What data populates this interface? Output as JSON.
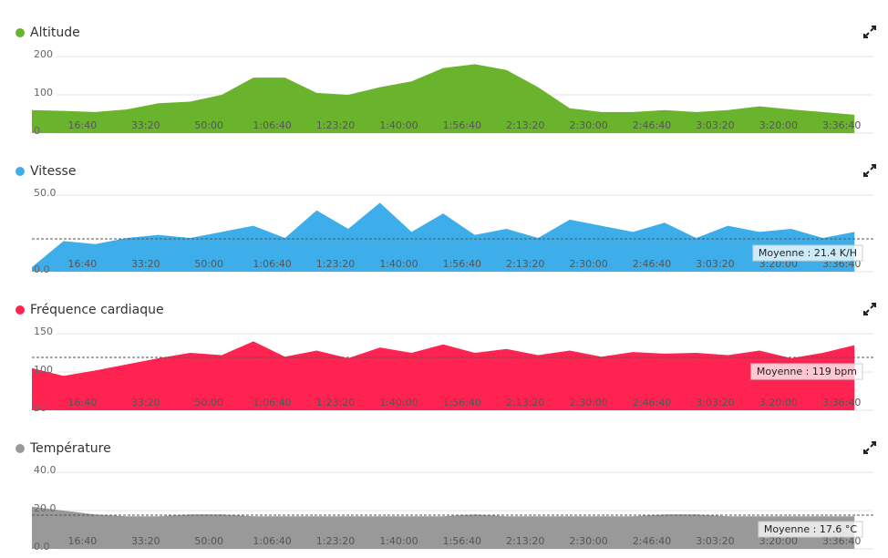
{
  "chart_data": [
    {
      "type": "area",
      "title": "Altitude",
      "color": "#6ab42d",
      "x": [
        0,
        500,
        1000,
        1500,
        2000,
        2500,
        3000,
        3500,
        4000,
        4500,
        5000,
        5500,
        6000,
        6500,
        7000,
        7500,
        8000,
        8500,
        9000,
        9500,
        10000,
        10500,
        11000,
        11500,
        12000,
        12500,
        13000
      ],
      "values": [
        60,
        58,
        55,
        62,
        78,
        82,
        100,
        145,
        145,
        105,
        100,
        120,
        135,
        170,
        180,
        165,
        120,
        65,
        55,
        55,
        60,
        55,
        60,
        70,
        62,
        55,
        48
      ],
      "xlim": [
        0,
        13300
      ],
      "ylim": [
        0,
        200
      ],
      "yticks": [
        0,
        100,
        200
      ],
      "xticks": [
        {
          "value": 1000,
          "label": "16:40"
        },
        {
          "value": 2000,
          "label": "33:20"
        },
        {
          "value": 3000,
          "label": "50:00"
        },
        {
          "value": 4000,
          "label": "1:06:40"
        },
        {
          "value": 5000,
          "label": "1:23:20"
        },
        {
          "value": 6000,
          "label": "1:40:00"
        },
        {
          "value": 7000,
          "label": "1:56:40"
        },
        {
          "value": 8000,
          "label": "2:13:20"
        },
        {
          "value": 9000,
          "label": "2:30:00"
        },
        {
          "value": 10000,
          "label": "2:46:40"
        },
        {
          "value": 11000,
          "label": "3:03:20"
        },
        {
          "value": 12000,
          "label": "3:20:00"
        },
        {
          "value": 13000,
          "label": "3:36:40"
        }
      ]
    },
    {
      "type": "area",
      "title": "Vitesse",
      "color": "#3daee9",
      "x": [
        0,
        500,
        1000,
        1500,
        2000,
        2500,
        3000,
        3500,
        4000,
        4500,
        5000,
        5500,
        6000,
        6500,
        7000,
        7500,
        8000,
        8500,
        9000,
        9500,
        10000,
        10500,
        11000,
        11500,
        12000,
        12500,
        13000
      ],
      "values": [
        3,
        20,
        18,
        22,
        24,
        22,
        26,
        30,
        22,
        40,
        28,
        45,
        26,
        38,
        24,
        28,
        22,
        34,
        30,
        26,
        32,
        22,
        30,
        26,
        28,
        22,
        26
      ],
      "xlim": [
        0,
        13300
      ],
      "ylim": [
        0,
        50
      ],
      "yticks": [
        {
          "value": 0,
          "label": "0.0"
        },
        {
          "value": 50,
          "label": "50.0"
        }
      ],
      "average": {
        "value": 21.4,
        "label": "Moyenne : 21.4 K/H"
      },
      "xticks": [
        {
          "value": 1000,
          "label": "16:40"
        },
        {
          "value": 2000,
          "label": "33:20"
        },
        {
          "value": 3000,
          "label": "50:00"
        },
        {
          "value": 4000,
          "label": "1:06:40"
        },
        {
          "value": 5000,
          "label": "1:23:20"
        },
        {
          "value": 6000,
          "label": "1:40:00"
        },
        {
          "value": 7000,
          "label": "1:56:40"
        },
        {
          "value": 8000,
          "label": "2:13:20"
        },
        {
          "value": 9000,
          "label": "2:30:00"
        },
        {
          "value": 10000,
          "label": "2:46:40"
        },
        {
          "value": 11000,
          "label": "3:03:20"
        },
        {
          "value": 12000,
          "label": "3:20:00"
        },
        {
          "value": 13000,
          "label": "3:36:40"
        }
      ]
    },
    {
      "type": "area",
      "title": "Fréquence cardiaque",
      "color": "#ff2352",
      "x": [
        0,
        500,
        1000,
        1500,
        2000,
        2500,
        3000,
        3500,
        4000,
        4500,
        5000,
        5500,
        6000,
        6500,
        7000,
        7500,
        8000,
        8500,
        9000,
        9500,
        10000,
        10500,
        11000,
        11500,
        12000,
        12500,
        13000
      ],
      "values": [
        105,
        95,
        102,
        110,
        118,
        125,
        122,
        140,
        120,
        128,
        118,
        132,
        125,
        136,
        125,
        130,
        122,
        128,
        120,
        126,
        124,
        125,
        122,
        128,
        118,
        125,
        135
      ],
      "xlim": [
        0,
        13300
      ],
      "ylim": [
        50,
        150
      ],
      "yticks": [
        50,
        100,
        150
      ],
      "average": {
        "value": 119,
        "label": "Moyenne : 119 bpm"
      },
      "xticks": [
        {
          "value": 1000,
          "label": "16:40"
        },
        {
          "value": 2000,
          "label": "33:20"
        },
        {
          "value": 3000,
          "label": "50:00"
        },
        {
          "value": 4000,
          "label": "1:06:40"
        },
        {
          "value": 5000,
          "label": "1:23:20"
        },
        {
          "value": 6000,
          "label": "1:40:00"
        },
        {
          "value": 7000,
          "label": "1:56:40"
        },
        {
          "value": 8000,
          "label": "2:13:20"
        },
        {
          "value": 9000,
          "label": "2:30:00"
        },
        {
          "value": 10000,
          "label": "2:46:40"
        },
        {
          "value": 11000,
          "label": "3:03:20"
        },
        {
          "value": 12000,
          "label": "3:20:00"
        },
        {
          "value": 13000,
          "label": "3:36:40"
        }
      ]
    },
    {
      "type": "area",
      "title": "Température",
      "color": "#999999",
      "x": [
        0,
        500,
        1000,
        1500,
        2000,
        2500,
        3000,
        3500,
        4000,
        4500,
        5000,
        5500,
        6000,
        6500,
        7000,
        7500,
        8000,
        8500,
        9000,
        9500,
        10000,
        10500,
        11000,
        11500,
        12000,
        12500,
        13000
      ],
      "values": [
        22,
        20,
        18,
        17,
        17,
        18,
        18,
        17,
        17,
        17,
        17,
        17,
        17,
        17,
        18,
        17,
        17,
        17,
        17,
        17,
        18,
        18,
        17,
        17,
        17,
        17,
        17
      ],
      "xlim": [
        0,
        13300
      ],
      "ylim": [
        0,
        40
      ],
      "yticks": [
        {
          "value": 0,
          "label": "0.0"
        },
        {
          "value": 20,
          "label": "20.0"
        },
        {
          "value": 40,
          "label": "40.0"
        }
      ],
      "average": {
        "value": 17.6,
        "label": "Moyenne : 17.6 °C"
      },
      "xticks": [
        {
          "value": 1000,
          "label": "16:40"
        },
        {
          "value": 2000,
          "label": "33:20"
        },
        {
          "value": 3000,
          "label": "50:00"
        },
        {
          "value": 4000,
          "label": "1:06:40"
        },
        {
          "value": 5000,
          "label": "1:23:20"
        },
        {
          "value": 6000,
          "label": "1:40:00"
        },
        {
          "value": 7000,
          "label": "1:56:40"
        },
        {
          "value": 8000,
          "label": "2:13:20"
        },
        {
          "value": 9000,
          "label": "2:30:00"
        },
        {
          "value": 10000,
          "label": "2:46:40"
        },
        {
          "value": 11000,
          "label": "3:03:20"
        },
        {
          "value": 12000,
          "label": "3:20:00"
        },
        {
          "value": 13000,
          "label": "3:36:40"
        }
      ]
    }
  ]
}
